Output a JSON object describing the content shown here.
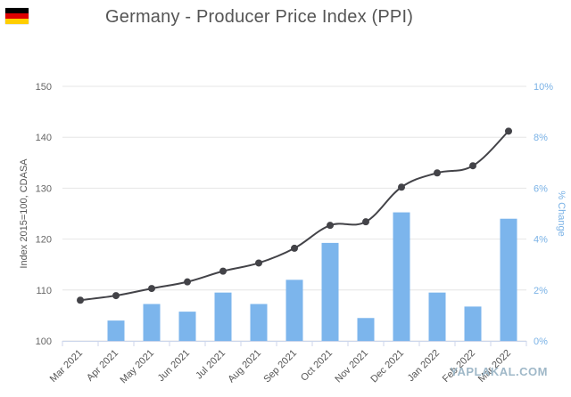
{
  "header": {
    "title": "Germany - Producer Price Index (PPI)",
    "flag": {
      "colors": [
        "#000000",
        "#dd0000",
        "#ffce00"
      ]
    }
  },
  "watermark": "YAPLAKAL.COM",
  "colors": {
    "bar": "#7cb5ec",
    "line": "#434348",
    "grid": "#e6e6e6",
    "right_axis": "#7ab2e6"
  },
  "chart_data": {
    "type": "bar",
    "title": "Germany - Producer Price Index (PPI)",
    "categories": [
      "Mar 2021",
      "Apr 2021",
      "May 2021",
      "Jun 2021",
      "Jul 2021",
      "Aug 2021",
      "Sep 2021",
      "Oct 2021",
      "Nov 2021",
      "Dec 2021",
      "Jan 2022",
      "Feb 2022",
      "Mar 2022"
    ],
    "ylabel": "Index 2015=100, CDASA",
    "ylabel_right": "% Change",
    "ylim": [
      100,
      150
    ],
    "ylim_right": [
      0,
      10
    ],
    "yticks": [
      "100",
      "110",
      "120",
      "130",
      "140",
      "150"
    ],
    "yticks_right": [
      "0%",
      "2%",
      "4%",
      "6%",
      "8%",
      "10%"
    ],
    "grid": true,
    "series": [
      {
        "name": "% Change",
        "type": "bar",
        "axis": "right",
        "values": [
          null,
          0.8,
          1.45,
          1.15,
          1.9,
          1.45,
          2.4,
          3.85,
          0.9,
          5.05,
          1.9,
          1.35,
          4.8
        ]
      },
      {
        "name": "Index",
        "type": "line",
        "axis": "left",
        "values": [
          108.0,
          108.9,
          110.3,
          111.6,
          113.7,
          115.3,
          118.2,
          122.7,
          123.4,
          130.2,
          133.0,
          134.4,
          141.2
        ]
      }
    ]
  }
}
